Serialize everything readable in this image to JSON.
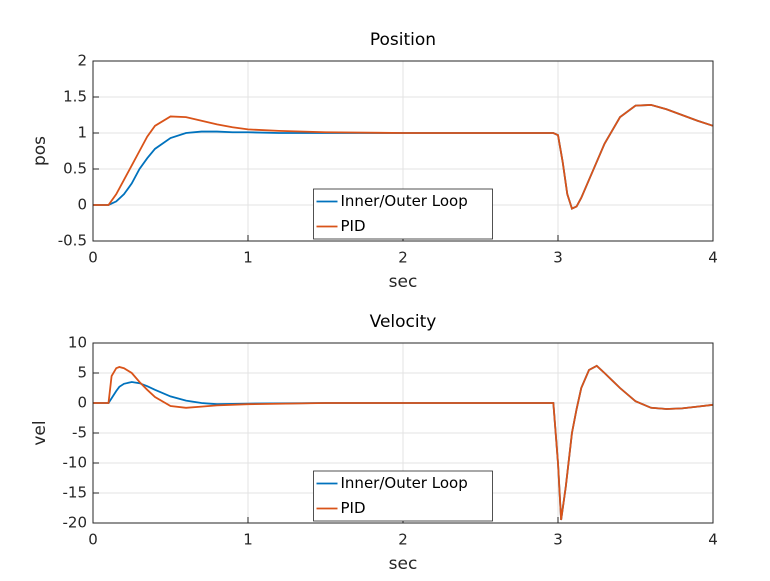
{
  "chart_data": [
    {
      "type": "line",
      "title": "Position",
      "x_label": "sec",
      "y_label": "pos",
      "x": [
        0,
        0.1,
        0.15,
        0.2,
        0.25,
        0.3,
        0.35,
        0.4,
        0.5,
        0.6,
        0.7,
        0.8,
        0.9,
        1.0,
        1.2,
        1.5,
        2,
        2.5,
        2.97,
        3.0,
        3.03,
        3.06,
        3.09,
        3.12,
        3.15,
        3.2,
        3.25,
        3.3,
        3.4,
        3.5,
        3.6,
        3.7,
        3.8,
        3.9,
        4.0
      ],
      "series": [
        {
          "name": "Inner/Outer Loop",
          "color": "#0072BD",
          "values": [
            0,
            0,
            0.05,
            0.15,
            0.3,
            0.5,
            0.65,
            0.78,
            0.93,
            1.0,
            1.02,
            1.02,
            1.01,
            1.01,
            1.0,
            1.0,
            1.0,
            1.0,
            1.0,
            0.97,
            0.6,
            0.15,
            -0.05,
            -0.02,
            0.1,
            0.35,
            0.6,
            0.85,
            1.22,
            1.38,
            1.39,
            1.33,
            1.25,
            1.17,
            1.1
          ]
        },
        {
          "name": "PID",
          "color": "#D95319",
          "values": [
            0,
            0,
            0.15,
            0.35,
            0.55,
            0.75,
            0.95,
            1.1,
            1.23,
            1.22,
            1.17,
            1.12,
            1.08,
            1.05,
            1.03,
            1.01,
            1.0,
            1.0,
            1.0,
            0.97,
            0.6,
            0.15,
            -0.05,
            -0.02,
            0.1,
            0.35,
            0.6,
            0.85,
            1.22,
            1.38,
            1.39,
            1.33,
            1.25,
            1.17,
            1.1
          ]
        }
      ],
      "xlim": [
        0,
        4
      ],
      "xticks": [
        0,
        1,
        2,
        3,
        4
      ],
      "ylim": [
        -0.5,
        2
      ],
      "yticks": [
        -0.5,
        0,
        0.5,
        1,
        1.5,
        2
      ],
      "grid": true,
      "legend": "south"
    },
    {
      "type": "line",
      "title": "Velocity",
      "x_label": "sec",
      "y_label": "vel",
      "x": [
        0,
        0.1,
        0.12,
        0.15,
        0.17,
        0.2,
        0.25,
        0.3,
        0.35,
        0.4,
        0.5,
        0.6,
        0.7,
        0.8,
        1.0,
        1.5,
        2,
        2.5,
        2.97,
        3.0,
        3.02,
        3.05,
        3.09,
        3.12,
        3.15,
        3.2,
        3.25,
        3.3,
        3.4,
        3.5,
        3.6,
        3.7,
        3.8,
        3.9,
        4.0
      ],
      "series": [
        {
          "name": "Inner/Outer Loop",
          "color": "#0072BD",
          "values": [
            0,
            0,
            0.8,
            2,
            2.7,
            3.2,
            3.5,
            3.3,
            2.8,
            2.2,
            1.1,
            0.4,
            0,
            -0.2,
            -0.1,
            0,
            0,
            0,
            0,
            -10,
            -19.5,
            -14,
            -5,
            -1,
            2.5,
            5.5,
            6.2,
            5,
            2.5,
            0.3,
            -0.8,
            -1,
            -0.9,
            -0.6,
            -0.3
          ]
        },
        {
          "name": "PID",
          "color": "#D95319",
          "values": [
            0,
            0,
            4.5,
            5.8,
            6,
            5.8,
            5,
            3.5,
            2.2,
            1,
            -0.5,
            -0.8,
            -0.6,
            -0.4,
            -0.2,
            0,
            0,
            0,
            0,
            -10,
            -19.5,
            -14,
            -5,
            -1,
            2.5,
            5.5,
            6.2,
            5,
            2.5,
            0.3,
            -0.8,
            -1,
            -0.9,
            -0.6,
            -0.3
          ]
        }
      ],
      "xlim": [
        0,
        4
      ],
      "xticks": [
        0,
        1,
        2,
        3,
        4
      ],
      "ylim": [
        -20,
        10
      ],
      "yticks": [
        -20,
        -15,
        -10,
        -5,
        0,
        5,
        10
      ],
      "grid": true,
      "legend": "south"
    }
  ]
}
